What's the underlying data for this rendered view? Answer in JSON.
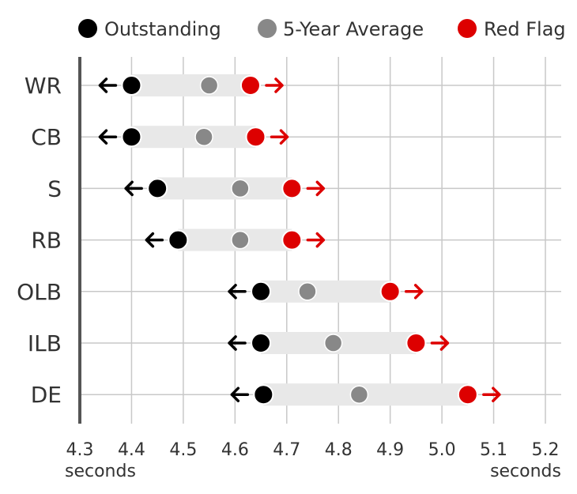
{
  "chart_data": {
    "type": "dot-range",
    "title": "",
    "legend": {
      "placement": "top",
      "entries": [
        {
          "label": "Outstanding",
          "color": "#000000"
        },
        {
          "label": "5-Year Average",
          "color": "#888888"
        },
        {
          "label": "Red Flag",
          "color": "#dd0000"
        }
      ]
    },
    "xlabel_left": "seconds",
    "xlabel_right": "seconds",
    "xlim": [
      4.3,
      5.2
    ],
    "xticks": [
      "4.3",
      "4.4",
      "4.5",
      "4.6",
      "4.7",
      "4.8",
      "4.9",
      "5.0",
      "5.1",
      "5.2"
    ],
    "grid": true,
    "categories": [
      "WR",
      "CB",
      "S",
      "RB",
      "OLB",
      "ILB",
      "DE"
    ],
    "series": [
      {
        "name": "Outstanding",
        "values": [
          4.4,
          4.4,
          4.45,
          4.49,
          4.65,
          4.65,
          4.655
        ]
      },
      {
        "name": "5-Year Average",
        "values": [
          4.55,
          4.54,
          4.61,
          4.61,
          4.74,
          4.79,
          4.84
        ]
      },
      {
        "name": "Red Flag",
        "values": [
          4.63,
          4.64,
          4.71,
          4.71,
          4.9,
          4.95,
          5.05
        ]
      }
    ],
    "colors": {
      "outstanding": "#000000",
      "average": "#888888",
      "red_flag": "#dd0000",
      "band": "#e8e8e8",
      "grid": "#c8c8c8",
      "axis": "#555555"
    }
  }
}
